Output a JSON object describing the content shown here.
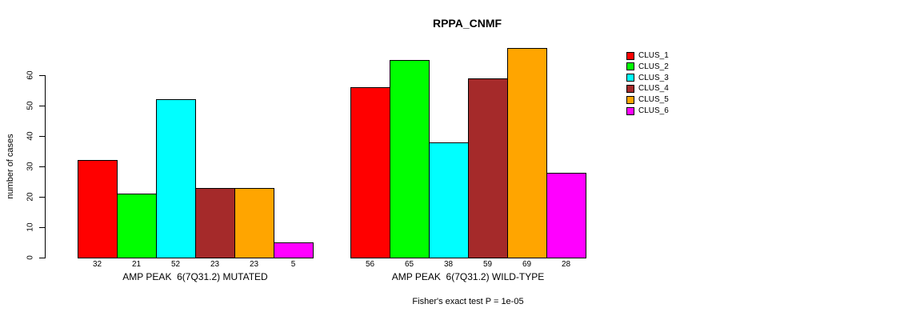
{
  "title": "RPPA_CNMF",
  "chart_data": {
    "type": "bar",
    "title": "RPPA_CNMF",
    "xlabel": "",
    "ylabel": "number of cases",
    "ylim": [
      0,
      70
    ],
    "yticks": [
      0,
      10,
      20,
      30,
      40,
      50,
      60
    ],
    "grid": false,
    "legend_position": "right",
    "bar_value_labels_shown": true,
    "series": [
      {
        "name": "CLUS_1",
        "color": "#FF0000"
      },
      {
        "name": "CLUS_2",
        "color": "#00FF00"
      },
      {
        "name": "CLUS_3",
        "color": "#00FFFF"
      },
      {
        "name": "CLUS_4",
        "color": "#A52A2A"
      },
      {
        "name": "CLUS_5",
        "color": "#FFA500"
      },
      {
        "name": "CLUS_6",
        "color": "#FF00FF"
      }
    ],
    "groups": [
      {
        "label": "AMP PEAK  6(7Q31.2) MUTATED",
        "values": [
          32,
          21,
          52,
          23,
          23,
          5
        ]
      },
      {
        "label": "AMP PEAK  6(7Q31.2) WILD-TYPE",
        "values": [
          56,
          65,
          38,
          59,
          69,
          28
        ]
      }
    ],
    "footer": "Fisher's exact test P = 1e-05"
  }
}
